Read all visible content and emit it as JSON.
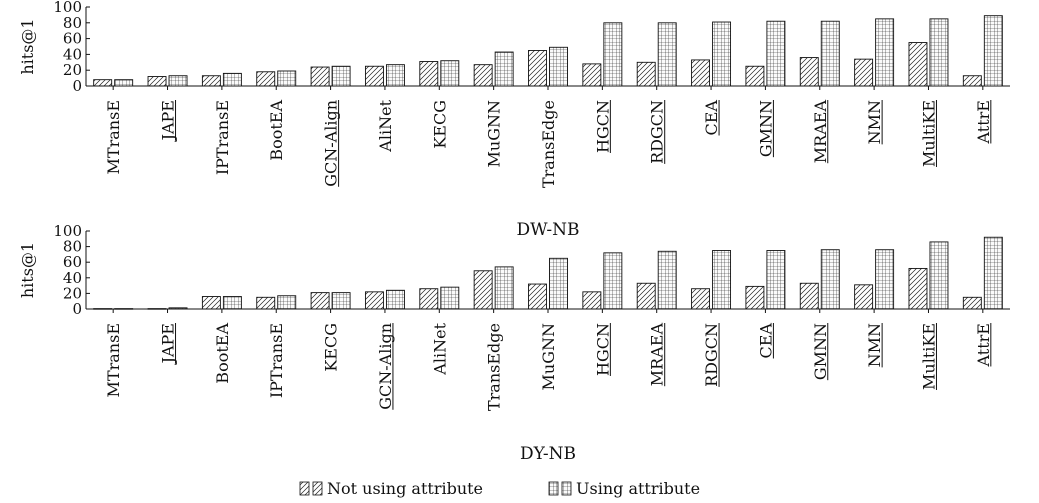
{
  "chart_data": [
    {
      "type": "bar",
      "title": "DW-NB",
      "ylabel": "hits@1",
      "ylim": [
        0,
        100
      ],
      "yticks": [
        0,
        20,
        40,
        60,
        80,
        100
      ],
      "categories": [
        "MTransE",
        "JAPE",
        "IPTransE",
        "BootEA",
        "GCN-Align",
        "AliNet",
        "KECG",
        "MuGNN",
        "TransEdge",
        "HGCN",
        "RDGCN",
        "CEA",
        "GMNN",
        "MRAEA",
        "NMN",
        "MultiKE",
        "AttrE"
      ],
      "underlined": [
        "JAPE",
        "GCN-Align",
        "HGCN",
        "RDGCN",
        "CEA",
        "GMNN",
        "MRAEA",
        "NMN",
        "MultiKE",
        "AttrE"
      ],
      "series": [
        {
          "name": "Not using attribute",
          "values": [
            8,
            12,
            13,
            18,
            24,
            25,
            31,
            27,
            45,
            28,
            30,
            33,
            25,
            36,
            34,
            55,
            13
          ]
        },
        {
          "name": "Using attribute",
          "values": [
            8,
            13,
            16,
            19,
            25,
            27,
            32,
            43,
            49,
            80,
            80,
            81,
            82,
            82,
            85,
            85,
            89
          ]
        }
      ]
    },
    {
      "type": "bar",
      "title": "DY-NB",
      "ylabel": "hits@1",
      "ylim": [
        0,
        100
      ],
      "yticks": [
        0,
        20,
        40,
        60,
        80,
        100
      ],
      "categories": [
        "MTransE",
        "JAPE",
        "BootEA",
        "IPTransE",
        "KECG",
        "GCN-Align",
        "AliNet",
        "TransEdge",
        "MuGNN",
        "HGCN",
        "MRAEA",
        "RDGCN",
        "CEA",
        "GMNN",
        "NMN",
        "MultiKE",
        "AttrE"
      ],
      "underlined": [
        "JAPE",
        "GCN-Align",
        "HGCN",
        "MRAEA",
        "RDGCN",
        "CEA",
        "GMNN",
        "NMN",
        "MultiKE",
        "AttrE"
      ],
      "series": [
        {
          "name": "Not using attribute",
          "values": [
            0.5,
            0.5,
            16,
            15,
            21,
            22,
            26,
            49,
            32,
            22,
            33,
            26,
            29,
            33,
            31,
            52,
            15
          ]
        },
        {
          "name": "Using attribute",
          "values": [
            0.5,
            1.5,
            16,
            17,
            21,
            24,
            28,
            54,
            65,
            72,
            74,
            75,
            75,
            76,
            76,
            86,
            92
          ]
        }
      ]
    }
  ],
  "legend": {
    "items": [
      "Not using attribute",
      "Using attribute"
    ],
    "position": "bottom-center"
  }
}
